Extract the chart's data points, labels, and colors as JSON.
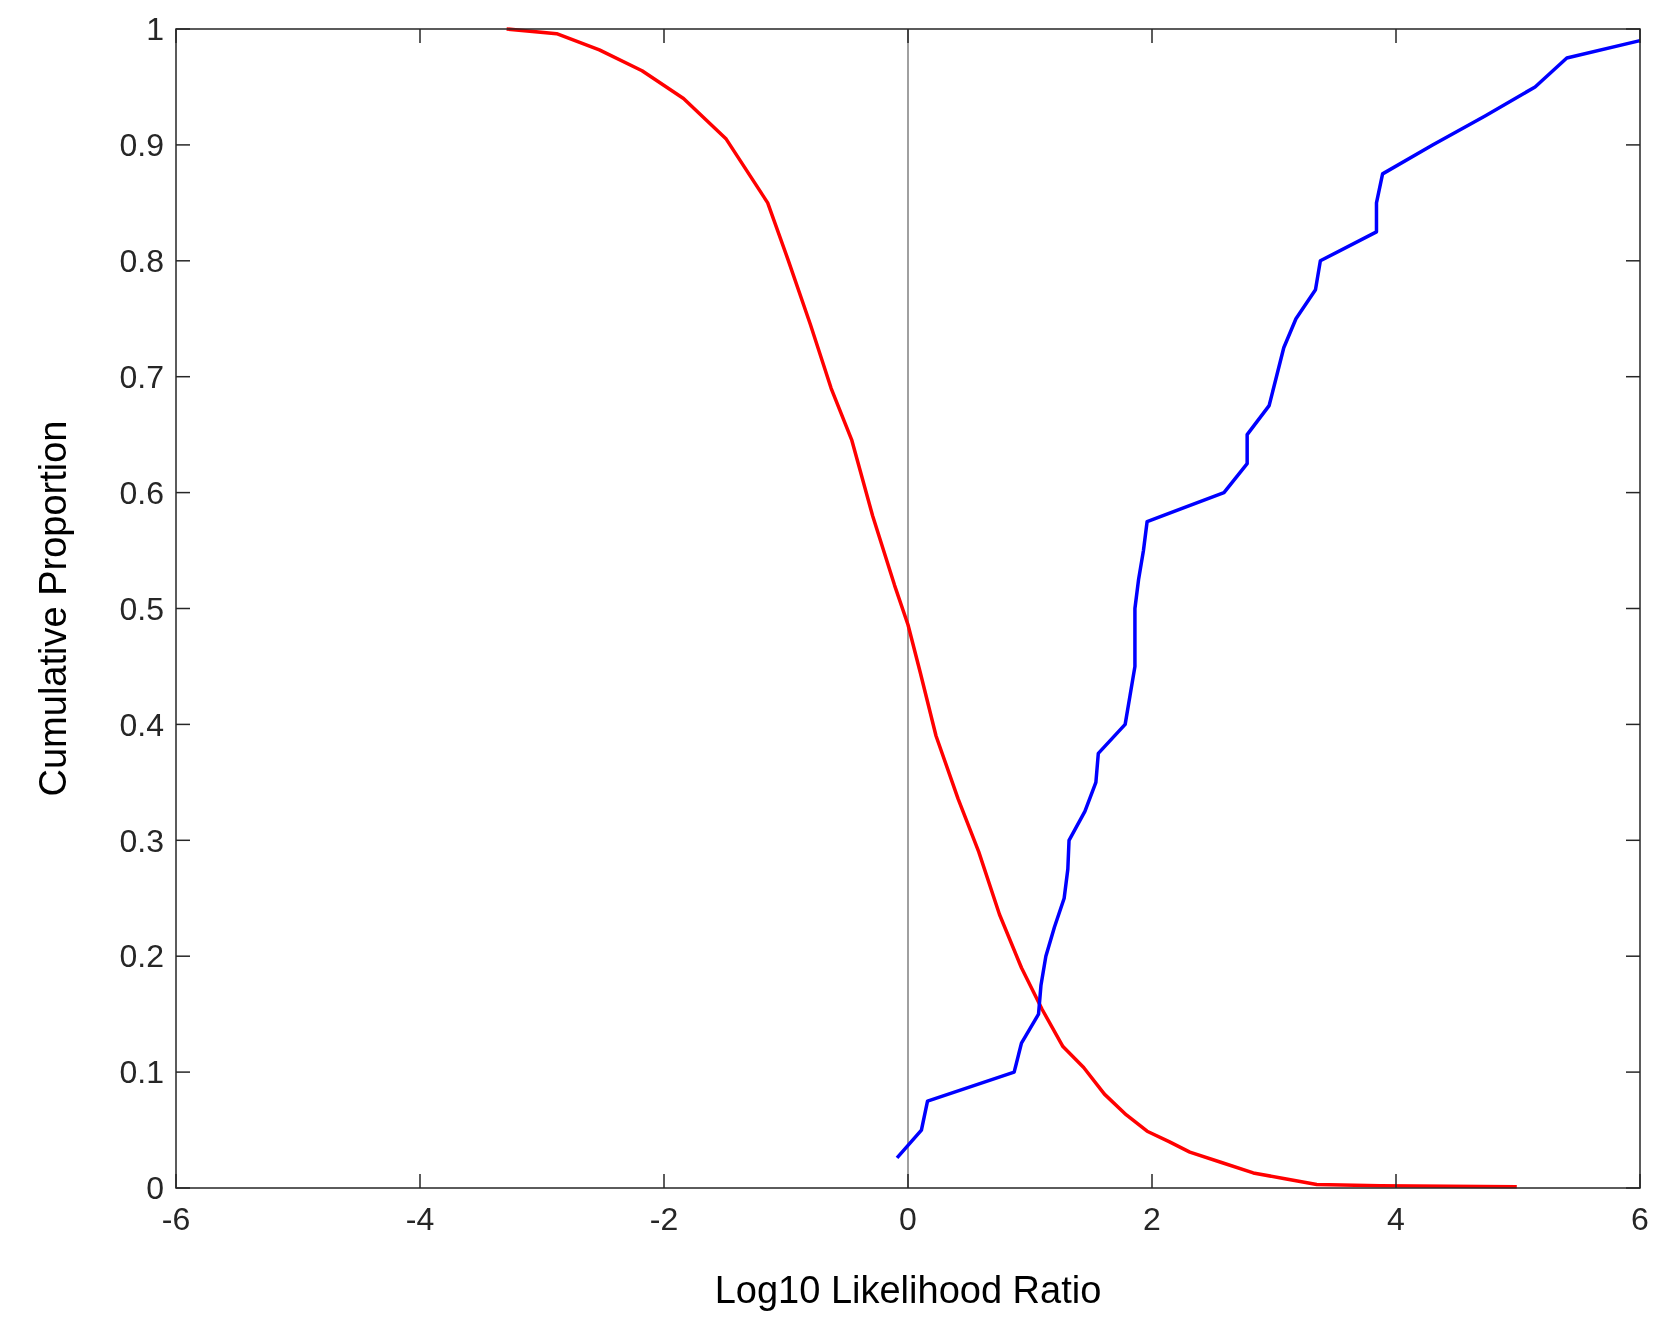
{
  "chart_data": {
    "type": "line",
    "xlabel": "Log10 Likelihood Ratio",
    "ylabel": "Cumulative Proportion",
    "xlim": [
      -6,
      6
    ],
    "ylim": [
      0,
      1
    ],
    "xticks": [
      -6,
      -4,
      -2,
      0,
      2,
      4,
      6
    ],
    "yticks": [
      0,
      0.1,
      0.2,
      0.3,
      0.4,
      0.5,
      0.6,
      0.7,
      0.8,
      0.9,
      1
    ],
    "grid": false,
    "line_style": "solid",
    "marker": "none",
    "ref_lines": [
      {
        "axis": "x",
        "value": 0,
        "color": "#a0a0a0"
      }
    ],
    "series": [
      {
        "color": "#ff0000",
        "x": [
          -3.29,
          -2.88,
          -2.53,
          -2.18,
          -1.84,
          -1.49,
          -1.15,
          -0.98,
          -0.8,
          -0.63,
          -0.46,
          -0.29,
          -0.11,
          0,
          0.1,
          0.23,
          0.41,
          0.58,
          0.75,
          0.93,
          1.1,
          1.27,
          1.44,
          1.61,
          1.79,
          1.96,
          2.14,
          2.31,
          2.57,
          2.83,
          3.09,
          3.35,
          3.87,
          4.99
        ],
        "values": [
          1,
          0.996,
          0.982,
          0.964,
          0.94,
          0.905,
          0.85,
          0.8,
          0.745,
          0.69,
          0.645,
          0.58,
          0.52,
          0.486,
          0.445,
          0.39,
          0.336,
          0.29,
          0.236,
          0.19,
          0.154,
          0.122,
          0.104,
          0.081,
          0.063,
          0.049,
          0.04,
          0.031,
          0.022,
          0.013,
          0.008,
          0.003,
          0.002,
          0.001
        ]
      },
      {
        "color": "#0000ff",
        "x": [
          -0.09,
          0.11,
          0.16,
          0.87,
          0.93,
          1.07,
          1.09,
          1.13,
          1.2,
          1.28,
          1.31,
          1.32,
          1.45,
          1.54,
          1.56,
          1.78,
          1.82,
          1.86,
          1.86,
          1.89,
          1.93,
          1.96,
          2.59,
          2.78,
          2.78,
          2.96,
          3.02,
          3.08,
          3.18,
          3.34,
          3.38,
          3.84,
          3.84,
          3.89,
          4.3,
          4.73,
          5.14,
          5.4,
          6
        ],
        "values": [
          0.026,
          0.05,
          0.075,
          0.1,
          0.125,
          0.15,
          0.175,
          0.2,
          0.225,
          0.25,
          0.275,
          0.3,
          0.325,
          0.35,
          0.375,
          0.4,
          0.425,
          0.45,
          0.5,
          0.525,
          0.55,
          0.575,
          0.6,
          0.625,
          0.65,
          0.675,
          0.7,
          0.725,
          0.75,
          0.775,
          0.8,
          0.825,
          0.85,
          0.875,
          0.9,
          0.925,
          0.95,
          0.975,
          0.99
        ]
      }
    ]
  }
}
